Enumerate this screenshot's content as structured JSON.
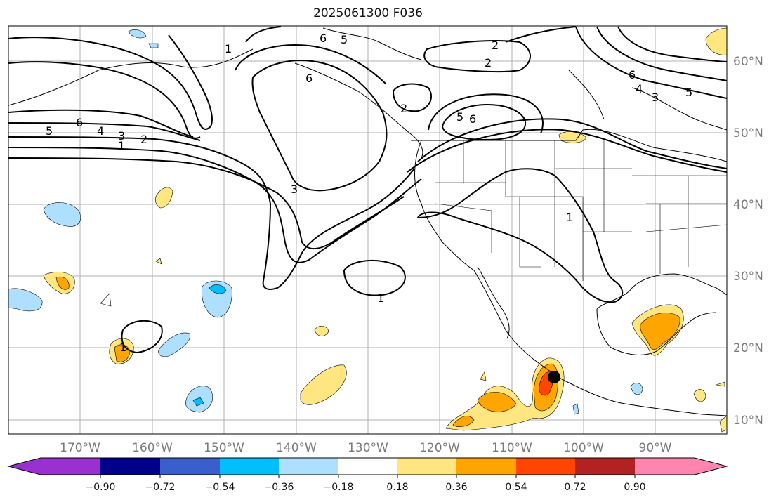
{
  "title": "2025061300 F036",
  "map": {
    "lon_labels": [
      "170°W",
      "160°W",
      "150°W",
      "140°W",
      "130°W",
      "120°W",
      "110°W",
      "100°W",
      "90°W"
    ],
    "lat_labels": [
      "60°N",
      "50°N",
      "40°N",
      "30°N",
      "20°N",
      "10°N"
    ],
    "contour_labels": [
      "6",
      "5",
      "6",
      "2",
      "2",
      "2",
      "5",
      "6",
      "6",
      "4",
      "3",
      "5",
      "5",
      "6",
      "4",
      "3",
      "2",
      "1",
      "1",
      "3",
      "1",
      "1",
      "1"
    ],
    "marker_color": "#000000"
  },
  "colorbar": {
    "ticks": [
      "−0.90",
      "−0.72",
      "−0.54",
      "−0.36",
      "−0.18",
      "0.18",
      "0.36",
      "0.54",
      "0.72",
      "0.90"
    ],
    "colors": [
      "#9b30d0",
      "#00008b",
      "#3a5fcd",
      "#00bfff",
      "#aedfff",
      "#ffffff",
      "#ffe680",
      "#ffa500",
      "#ff4500",
      "#b22222",
      "#ff85b0"
    ]
  }
}
